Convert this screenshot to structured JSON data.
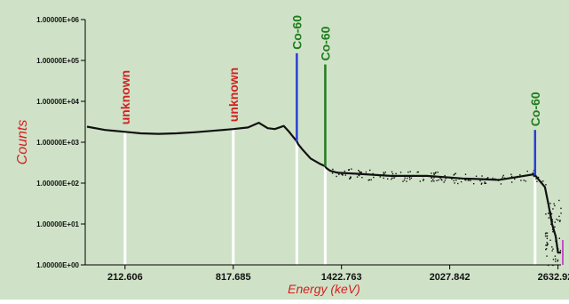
{
  "chart_data": {
    "type": "line",
    "title": "",
    "xlabel": "Energy (keV)",
    "ylabel": "Counts",
    "y_scale": "log",
    "ylim": [
      1,
      1000000
    ],
    "xlim": [
      -10,
      2650
    ],
    "x_ticks": [
      212.606,
      817.685,
      1422.763,
      2027.842,
      2632.921
    ],
    "x_tick_labels": [
      "212.606",
      "817.685",
      "1422.763",
      "2027.842",
      "2632.921"
    ],
    "y_ticks": [
      1,
      10,
      100,
      1000,
      10000,
      100000,
      1000000
    ],
    "y_tick_labels": [
      "1.00000E+00",
      "1.00000E+01",
      "1.00000E+02",
      "1.00000E+03",
      "1.00000E+04",
      "1.00000E+05",
      "1.00000E+06"
    ],
    "grid": false,
    "colors": {
      "background": "#cfe2c7",
      "spectrum": "#111111",
      "peak_blue": "#2a3fd6",
      "peak_green": "#1e7d1e",
      "annotation_red": "#d42020",
      "annotation_green": "#1e7d1e",
      "marker_lines": "#ffffff",
      "ylabel_color": "#d42020",
      "xlabel_color": "#d42020"
    },
    "series": [
      {
        "x": [
          0,
          100,
          212.606,
          300,
          400,
          500,
          600,
          700,
          817.685,
          900,
          960,
          1010,
          1050,
          1100,
          1130,
          1150,
          1173,
          1180,
          1200,
          1250,
          1300,
          1330,
          1340,
          1360,
          1400,
          1500,
          1600,
          1700,
          1800,
          1900,
          2000,
          2100,
          2200,
          2300,
          2400,
          2500,
          2560,
          2580,
          2600,
          2620,
          2632.921,
          2640,
          2650
        ],
        "y": [
          2400,
          2000,
          1800,
          1650,
          1600,
          1650,
          1750,
          1900,
          2100,
          2300,
          3000,
          2200,
          2100,
          2500,
          1800,
          1400,
          1050,
          900,
          700,
          400,
          300,
          260,
          230,
          200,
          180,
          170,
          160,
          150,
          150,
          150,
          140,
          130,
          125,
          120,
          140,
          165,
          80,
          30,
          10,
          5,
          2,
          2,
          2
        ]
      }
    ],
    "peaks": [
      {
        "x": 1173,
        "y": 150000,
        "color": "peak_blue"
      },
      {
        "x": 1332,
        "y": 80000,
        "color": "peak_green"
      },
      {
        "x": 2505,
        "y": 2000,
        "color": "peak_blue"
      }
    ],
    "marker_lines": [
      {
        "x": 212.606
      },
      {
        "x": 817.685
      },
      {
        "x": 1173
      },
      {
        "x": 1332
      },
      {
        "x": 2505
      }
    ],
    "annotations": [
      {
        "text": "unknown",
        "x": 212.606,
        "color": "annotation_red"
      },
      {
        "text": "unknown",
        "x": 817.685,
        "color": "annotation_red"
      },
      {
        "text": "Co-60",
        "x": 1173,
        "color": "annotation_green"
      },
      {
        "text": "Co-60",
        "x": 1332,
        "color": "annotation_green"
      },
      {
        "text": "Co-60",
        "x": 2505,
        "color": "annotation_green"
      }
    ]
  }
}
